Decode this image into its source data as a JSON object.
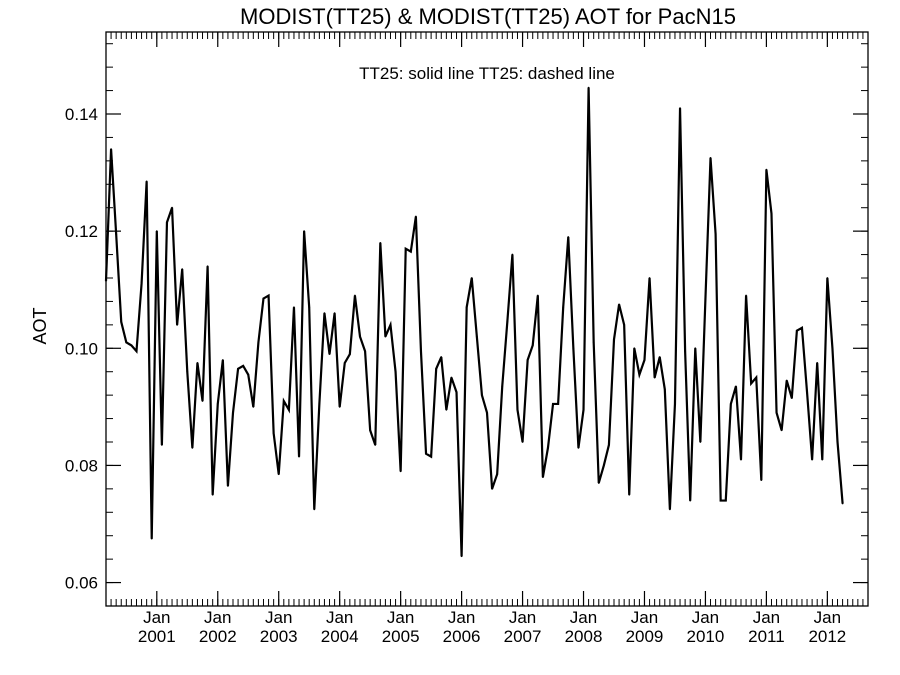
{
  "chart_data": {
    "type": "line",
    "title": "MODIST(TT25) & MODIST(TT25)  AOT for PacN15",
    "legend_text": "TT25: solid line   TT25: dashed line",
    "xlabel": "",
    "ylabel": "AOT",
    "ylim": [
      0.056,
      0.154
    ],
    "xlim": [
      "2000-03",
      "2012-09"
    ],
    "grid": false,
    "y_ticks": [
      "0.06",
      "0.08",
      "0.10",
      "0.12",
      "0.14"
    ],
    "x_ticks": [
      {
        "month": "Jan",
        "year": "2001",
        "date": "2001-01"
      },
      {
        "month": "Jan",
        "year": "2002",
        "date": "2002-01"
      },
      {
        "month": "Jan",
        "year": "2003",
        "date": "2003-01"
      },
      {
        "month": "Jan",
        "year": "2004",
        "date": "2004-01"
      },
      {
        "month": "Jan",
        "year": "2005",
        "date": "2005-01"
      },
      {
        "month": "Jan",
        "year": "2006",
        "date": "2006-01"
      },
      {
        "month": "Jan",
        "year": "2007",
        "date": "2007-01"
      },
      {
        "month": "Jan",
        "year": "2008",
        "date": "2008-01"
      },
      {
        "month": "Jan",
        "year": "2009",
        "date": "2009-01"
      },
      {
        "month": "Jan",
        "year": "2010",
        "date": "2010-01"
      },
      {
        "month": "Jan",
        "year": "2011",
        "date": "2011-01"
      },
      {
        "month": "Jan",
        "year": "2012",
        "date": "2012-01"
      }
    ],
    "series": [
      {
        "name": "TT25",
        "style": "solid",
        "color": "#000000",
        "start": "2000-03",
        "values": [
          0.1115,
          0.134,
          0.1195,
          0.1045,
          0.101,
          0.1005,
          0.0995,
          0.111,
          0.1285,
          0.0675,
          0.12,
          0.0835,
          0.1215,
          0.124,
          0.104,
          0.1135,
          0.096,
          0.083,
          0.0975,
          0.091,
          0.114,
          0.075,
          0.0905,
          0.098,
          0.0765,
          0.089,
          0.0965,
          0.097,
          0.0955,
          0.09,
          0.101,
          0.1085,
          0.109,
          0.0855,
          0.0785,
          0.091,
          0.0895,
          0.107,
          0.0815,
          0.12,
          0.107,
          0.0725,
          0.0905,
          0.106,
          0.099,
          0.106,
          0.09,
          0.0975,
          0.099,
          0.109,
          0.102,
          0.0995,
          0.086,
          0.0835,
          0.118,
          0.102,
          0.104,
          0.096,
          0.079,
          0.117,
          0.1165,
          0.1225,
          0.0995,
          0.082,
          0.0815,
          0.0965,
          0.0985,
          0.0895,
          0.095,
          0.0925,
          0.0645,
          0.107,
          0.112,
          0.102,
          0.092,
          0.089,
          0.076,
          0.0785,
          0.0935,
          0.1045,
          0.116,
          0.0895,
          0.084,
          0.098,
          0.1005,
          0.109,
          0.078,
          0.083,
          0.0905,
          0.0905,
          0.107,
          0.119,
          0.1,
          0.083,
          0.0895,
          0.1445,
          0.101,
          0.077,
          0.08,
          0.0835,
          0.1015,
          0.1075,
          0.104,
          0.075,
          0.1,
          0.0955,
          0.098,
          0.112,
          0.095,
          0.0985,
          0.093,
          0.0725,
          0.0905,
          0.141,
          0.0995,
          0.074,
          0.1,
          0.084,
          0.1085,
          0.1325,
          0.1195,
          0.074,
          0.074,
          0.0905,
          0.0935,
          0.081,
          0.109,
          0.094,
          0.095,
          0.0775,
          0.1305,
          0.123,
          0.089,
          0.086,
          0.0945,
          0.0915,
          0.103,
          0.1035,
          0.0925,
          0.081,
          0.0975,
          0.081,
          0.112,
          0.1,
          0.084,
          0.0735
        ]
      }
    ]
  }
}
